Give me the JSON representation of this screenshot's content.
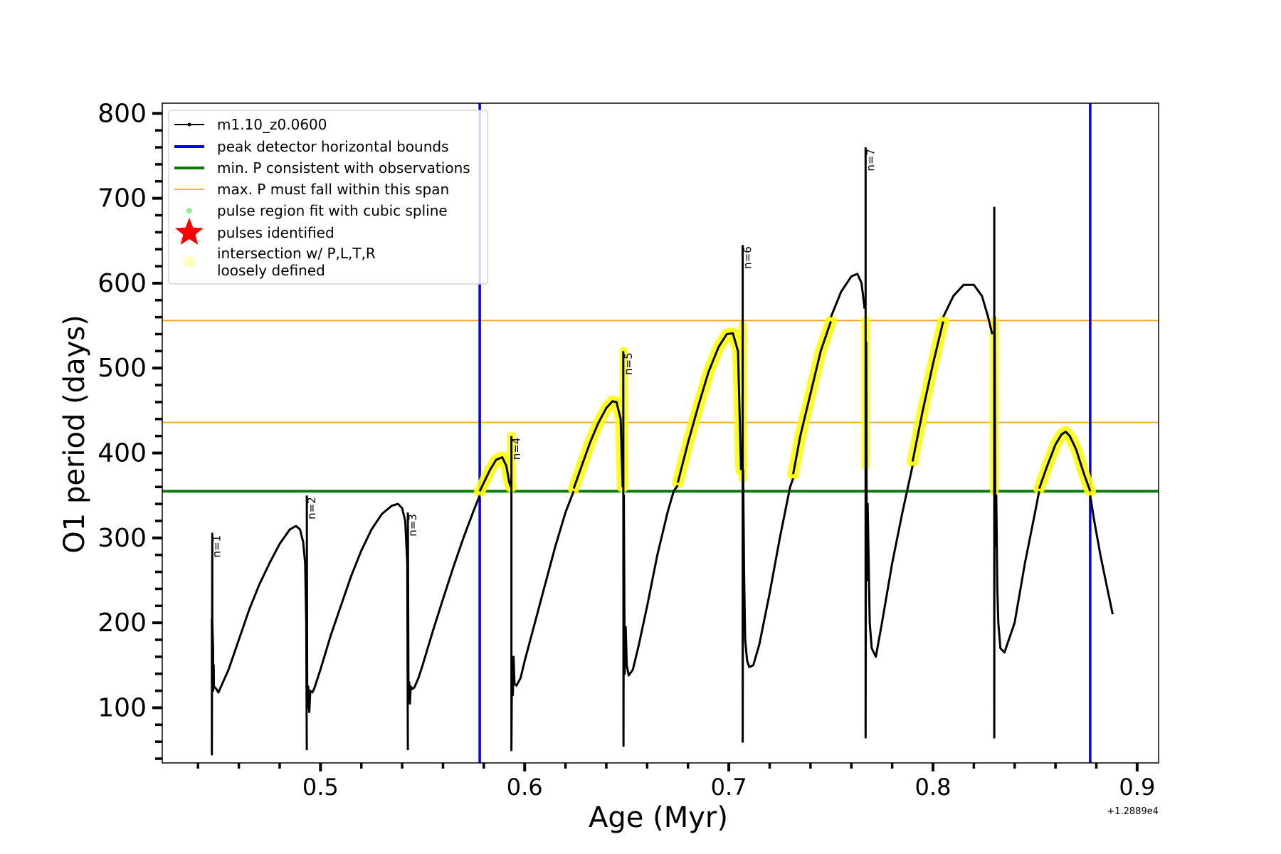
{
  "chart_data": {
    "type": "line",
    "xlabel": "Age (Myr)",
    "ylabel": "O1 period (days)",
    "x_offset_label": "+1.2889e4",
    "xlim": [
      0.4225,
      0.9105
    ],
    "ylim": [
      35,
      812
    ],
    "xticks": [
      {
        "value": 0.5,
        "label": "0.5"
      },
      {
        "value": 0.6,
        "label": "0.6"
      },
      {
        "value": 0.7,
        "label": "0.7"
      },
      {
        "value": 0.8,
        "label": "0.8"
      },
      {
        "value": 0.9,
        "label": "0.9"
      }
    ],
    "yticks": [
      {
        "value": 100,
        "label": "100"
      },
      {
        "value": 200,
        "label": "200"
      },
      {
        "value": 300,
        "label": "300"
      },
      {
        "value": 400,
        "label": "400"
      },
      {
        "value": 500,
        "label": "500"
      },
      {
        "value": 600,
        "label": "600"
      },
      {
        "value": 700,
        "label": "700"
      },
      {
        "value": 800,
        "label": "800"
      }
    ],
    "grid": false,
    "legend_position": "top-left",
    "colors": {
      "series": "#000000",
      "bounds": "#0000ee",
      "min_p": "#0a7a0a",
      "max_p": "#f5a623",
      "spline": "#90ee90",
      "pulses": "#ff0000",
      "intersection": "#ffff00"
    },
    "series": [
      {
        "name": "m1.10_z0.0600",
        "segments": [
          {
            "x": [
              0.4468,
              0.4468,
              0.447,
              0.447,
              0.4474,
              0.4474,
              0.4477,
              0.4478,
              0.449,
              0.45,
              0.455,
              0.46,
              0.465,
              0.47,
              0.475,
              0.48,
              0.485,
              0.488,
              0.49,
              0.4915,
              0.4925,
              0.493,
              0.4933
            ],
            "y": [
              205,
              45,
              305,
              200,
              170,
              120,
              150,
              125,
              122,
              118,
              145,
              180,
              215,
              245,
              270,
              293,
              310,
              314,
              310,
              295,
              270,
              200,
              50
            ]
          },
          {
            "x": [
              0.4933,
              0.4935,
              0.494,
              0.4945,
              0.495,
              0.496,
              0.497,
              0.5,
              0.505,
              0.51,
              0.515,
              0.52,
              0.525,
              0.53,
              0.535,
              0.538,
              0.54,
              0.5415,
              0.5425,
              0.5428
            ],
            "y": [
              350,
              100,
              125,
              95,
              120,
              118,
              123,
              145,
              185,
              220,
              255,
              285,
              310,
              328,
              338,
              340,
              335,
              320,
              270,
              50
            ]
          },
          {
            "x": [
              0.5428,
              0.5431,
              0.5435,
              0.5438,
              0.5442,
              0.545,
              0.546,
              0.548,
              0.55,
              0.555,
              0.56,
              0.565,
              0.57,
              0.575,
              0.578
            ],
            "y": [
              330,
              110,
              130,
              105,
              125,
              122,
              124,
              135,
              150,
              190,
              228,
              265,
              300,
              332,
              350
            ]
          },
          {
            "x": [
              0.578,
              0.58,
              0.583,
              0.586,
              0.589,
              0.591,
              0.5925,
              0.5933
            ],
            "y": [
              355,
              365,
              380,
              392,
              395,
              385,
              365,
              360
            ]
          },
          {
            "x": [
              0.5935,
              0.5935,
              0.5938,
              0.5942,
              0.5946,
              0.595,
              0.596,
              0.598,
              0.6,
              0.605,
              0.61,
              0.615,
              0.62,
              0.624
            ],
            "y": [
              420,
              50,
              150,
              115,
              160,
              128,
              126,
              135,
              155,
              200,
              245,
              290,
              330,
              355
            ]
          },
          {
            "x": [
              0.624,
              0.628,
              0.632,
              0.636,
              0.64,
              0.643,
              0.645,
              0.647,
              0.648
            ],
            "y": [
              358,
              385,
              412,
              435,
              453,
              461,
              460,
              440,
              360
            ]
          },
          {
            "x": [
              0.6483,
              0.6484,
              0.6486,
              0.649,
              0.6495,
              0.65,
              0.651,
              0.653,
              0.656,
              0.66,
              0.665,
              0.67,
              0.673,
              0.675
            ],
            "y": [
              520,
              55,
              350,
              140,
              195,
              150,
              138,
              145,
              175,
              220,
              280,
              330,
              355,
              362
            ]
          },
          {
            "x": [
              0.675,
              0.68,
              0.685,
              0.69,
              0.695,
              0.699,
              0.702,
              0.7045,
              0.706
            ],
            "y": [
              365,
              412,
              455,
              495,
              525,
              540,
              541,
              520,
              380
            ]
          },
          {
            "x": [
              0.7068,
              0.7068,
              0.707,
              0.7075,
              0.708,
              0.709,
              0.71,
              0.712,
              0.715,
              0.72,
              0.725,
              0.73,
              0.7315
            ],
            "y": [
              645,
              60,
              380,
              255,
              180,
              155,
              148,
              150,
              175,
              235,
              300,
              360,
              370
            ]
          },
          {
            "x": [
              0.7315,
              0.735,
              0.74,
              0.745,
              0.75
            ],
            "y": [
              375,
              420,
              470,
              520,
              555
            ]
          },
          {
            "x": [
              0.75,
              0.755,
              0.76,
              0.763,
              0.765,
              0.7665
            ],
            "y": [
              560,
              590,
              608,
              611,
              600,
              570
            ]
          },
          {
            "x": [
              0.767,
              0.767,
              0.7673,
              0.7676,
              0.768,
              0.769,
              0.77,
              0.772,
              0.775,
              0.78,
              0.785,
              0.79
            ],
            "y": [
              760,
              65,
              530,
              250,
              340,
              200,
              170,
              160,
              200,
              270,
              330,
              385
            ]
          },
          {
            "x": [
              0.79,
              0.795,
              0.8,
              0.805
            ],
            "y": [
              390,
              450,
              505,
              555
            ]
          },
          {
            "x": [
              0.805,
              0.81,
              0.815,
              0.82,
              0.824,
              0.827,
              0.829
            ],
            "y": [
              560,
              585,
              598,
              598,
              585,
              560,
              540
            ]
          },
          {
            "x": [
              0.83,
              0.83,
              0.8302,
              0.8305,
              0.831,
              0.8315,
              0.832,
              0.833,
              0.835,
              0.84,
              0.845,
              0.85,
              0.852
            ],
            "y": [
              690,
              65,
              560,
              290,
              350,
              240,
              200,
              170,
              165,
              200,
              270,
              330,
              355
            ]
          },
          {
            "x": [
              0.852,
              0.856,
              0.86,
              0.863,
              0.865,
              0.867,
              0.87,
              0.874,
              0.877
            ],
            "y": [
              358,
              385,
              410,
              422,
              425,
              420,
              405,
              375,
              355
            ]
          },
          {
            "x": [
              0.877,
              0.879,
              0.882,
              0.885,
              0.888
            ],
            "y": [
              350,
              320,
              280,
              245,
              210
            ]
          }
        ]
      }
    ],
    "vlines": [
      {
        "x": 0.578,
        "color": "#0000ee"
      },
      {
        "x": 0.877,
        "color": "#0000ee"
      }
    ],
    "hlines": [
      {
        "y": 355,
        "color": "#0a7a0a",
        "kind": "min"
      },
      {
        "y": 436,
        "color": "#f5a623",
        "kind": "max"
      },
      {
        "y": 556,
        "color": "#f5a623",
        "kind": "max"
      }
    ],
    "intersection_segment_indices": [
      3,
      5,
      7,
      9,
      12,
      15
    ],
    "intersection_vertical_spans": [
      {
        "x": 0.5935,
        "y": [
          360,
          420
        ]
      },
      {
        "x": 0.6485,
        "y": [
          365,
          520
        ]
      },
      {
        "x": 0.7068,
        "y": [
          370,
          550
        ]
      },
      {
        "x": 0.767,
        "y": [
          385,
          556
        ]
      },
      {
        "x": 0.83,
        "y": [
          355,
          556
        ]
      }
    ],
    "annotations": [
      {
        "x": 0.4468,
        "y": 305,
        "text": "n=1"
      },
      {
        "x": 0.4933,
        "y": 350,
        "text": "n=2"
      },
      {
        "x": 0.5428,
        "y": 330,
        "text": "n=3"
      },
      {
        "x": 0.5935,
        "y": 420,
        "text": "n=4"
      },
      {
        "x": 0.6483,
        "y": 520,
        "text": "n=5"
      },
      {
        "x": 0.7068,
        "y": 645,
        "text": "n=6"
      },
      {
        "x": 0.767,
        "y": 760,
        "text": "n=7"
      }
    ],
    "legend": [
      {
        "label": "m1.10_z0.0600",
        "marker": "line-dot",
        "color": "#000000"
      },
      {
        "label": "peak detector horizontal bounds",
        "marker": "thick-line",
        "color": "#0000ee"
      },
      {
        "label": "min. P consistent with observations",
        "marker": "thick-line",
        "color": "#0a7a0a"
      },
      {
        "label": "max. P must fall within this span",
        "marker": "thin-line",
        "color": "#f5a623"
      },
      {
        "label": "pulse region fit with cubic spline",
        "marker": "dot",
        "color": "#90ee90"
      },
      {
        "label": "pulses identified",
        "marker": "star",
        "color": "#ff0000"
      },
      {
        "label": "intersection w/ P,L,T,R",
        "marker": "big-dot",
        "color": "#ffffaa"
      },
      {
        "label": "loosely defined",
        "marker": "none",
        "color": "#000000"
      }
    ]
  }
}
